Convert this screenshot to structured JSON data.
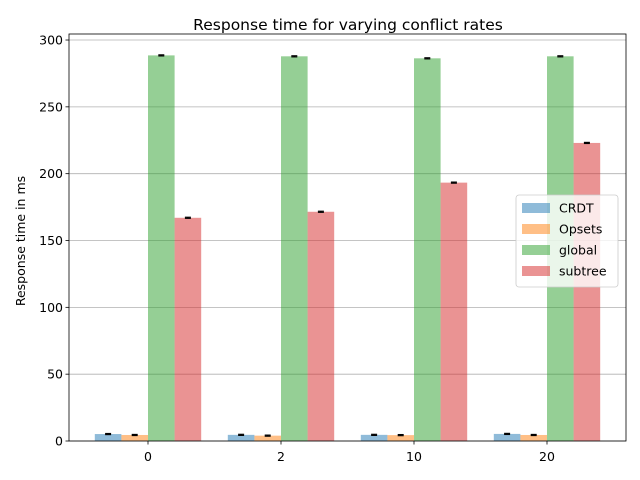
{
  "chart_data": {
    "type": "bar",
    "title": "Response time for varying conflict rates",
    "xlabel": "",
    "ylabel": "Response time in ms",
    "categories": [
      "0",
      "2",
      "10",
      "20"
    ],
    "ylim": [
      0,
      300
    ],
    "yticks": [
      0,
      50,
      100,
      150,
      200,
      250,
      300
    ],
    "grid": "horizontal",
    "legend_position": "center-right",
    "error_bars": true,
    "series": [
      {
        "name": "CRDT",
        "color": "#1f77b4",
        "values": [
          5.2,
          4.6,
          4.6,
          5.3
        ],
        "errors": [
          0.4,
          0.4,
          0.4,
          0.4
        ]
      },
      {
        "name": "Opsets",
        "color": "#ff7f0e",
        "values": [
          4.5,
          4.0,
          4.4,
          4.5
        ],
        "errors": [
          0.4,
          0.4,
          0.4,
          0.4
        ]
      },
      {
        "name": "global",
        "color": "#2ca02c",
        "values": [
          288.5,
          287.8,
          286.3,
          287.8
        ],
        "errors": [
          0.4,
          0.4,
          0.4,
          0.4
        ]
      },
      {
        "name": "subtree",
        "color": "#d62728",
        "values": [
          167.0,
          171.5,
          193.3,
          223.0
        ],
        "errors": [
          0.4,
          0.4,
          0.4,
          0.4
        ]
      }
    ]
  }
}
